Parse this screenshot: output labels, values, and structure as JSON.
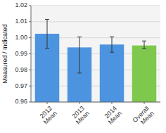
{
  "chart_data": {
    "type": "bar",
    "categories": [
      "2012\nMean",
      "2013\nMean",
      "2014\nMean",
      "Overall\nMean"
    ],
    "values": [
      1.0025,
      0.994,
      0.9958,
      0.9952
    ],
    "errors_upper": [
      0.009,
      0.0065,
      0.0048,
      0.0028
    ],
    "errors_lower": [
      0.009,
      0.016,
      0.0048,
      0.0018
    ],
    "colors": [
      "#4d94e0",
      "#4d94e0",
      "#4d94e0",
      "#7ec84d"
    ],
    "ylabel": "Measured / Indicated",
    "ylim": [
      0.96,
      1.02
    ],
    "yticks": [
      0.96,
      0.97,
      0.98,
      0.99,
      {
        "value": 1,
        "label": "1.00"
      },
      1.01,
      1.02
    ],
    "grid": true
  }
}
